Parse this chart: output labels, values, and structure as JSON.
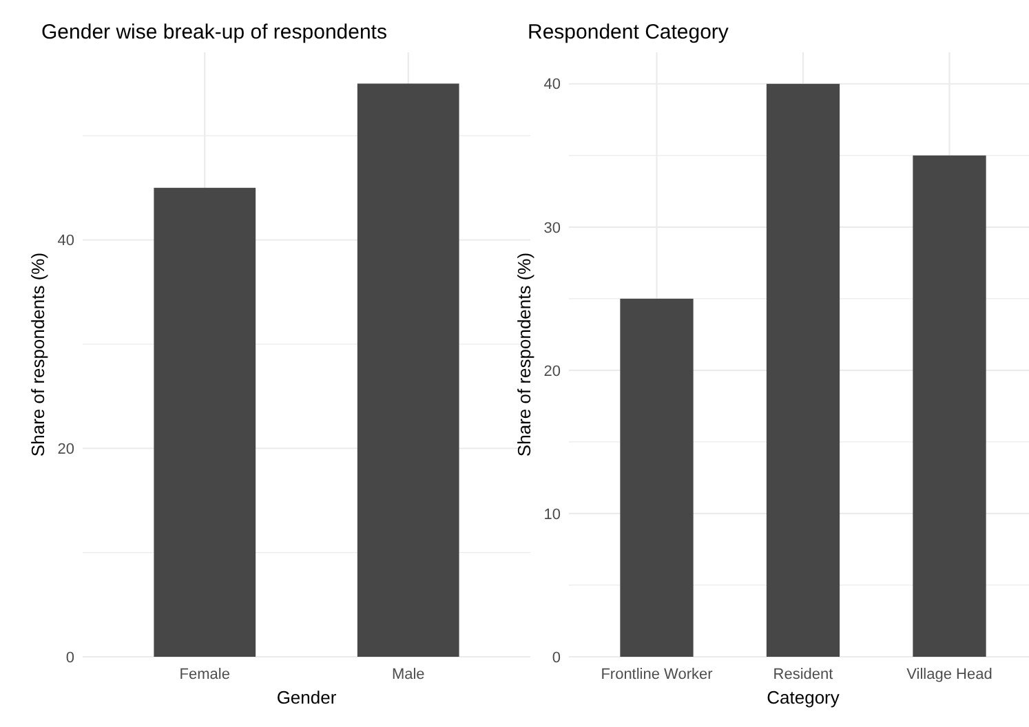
{
  "chart_data": [
    {
      "type": "bar",
      "title": "Gender wise break-up of respondents",
      "xlabel": "Gender",
      "ylabel": "Share of respondents (%)",
      "categories": [
        "Female",
        "Male"
      ],
      "values": [
        45,
        55
      ],
      "color": "#474747",
      "ylim": [
        0,
        58
      ],
      "yticks": [
        0,
        {
          "value": 10,
          "label": null
        },
        20,
        {
          "value": 30,
          "label": null
        },
        40,
        {
          "value": 50,
          "label": null
        }
      ],
      "grid": true
    },
    {
      "type": "bar",
      "title": "Respondent Category",
      "xlabel": "Category",
      "ylabel": "Share of respondents (%)",
      "categories": [
        "Frontline Worker",
        "Resident",
        "Village Head"
      ],
      "values": [
        25,
        40,
        35
      ],
      "color": "#474747",
      "ylim": [
        0,
        42.2
      ],
      "yticks": [
        0,
        {
          "value": 5,
          "label": null
        },
        10,
        {
          "value": 15,
          "label": null
        },
        20,
        {
          "value": 25,
          "label": null
        },
        30,
        {
          "value": 35,
          "label": null
        },
        40
      ],
      "grid": true
    }
  ]
}
